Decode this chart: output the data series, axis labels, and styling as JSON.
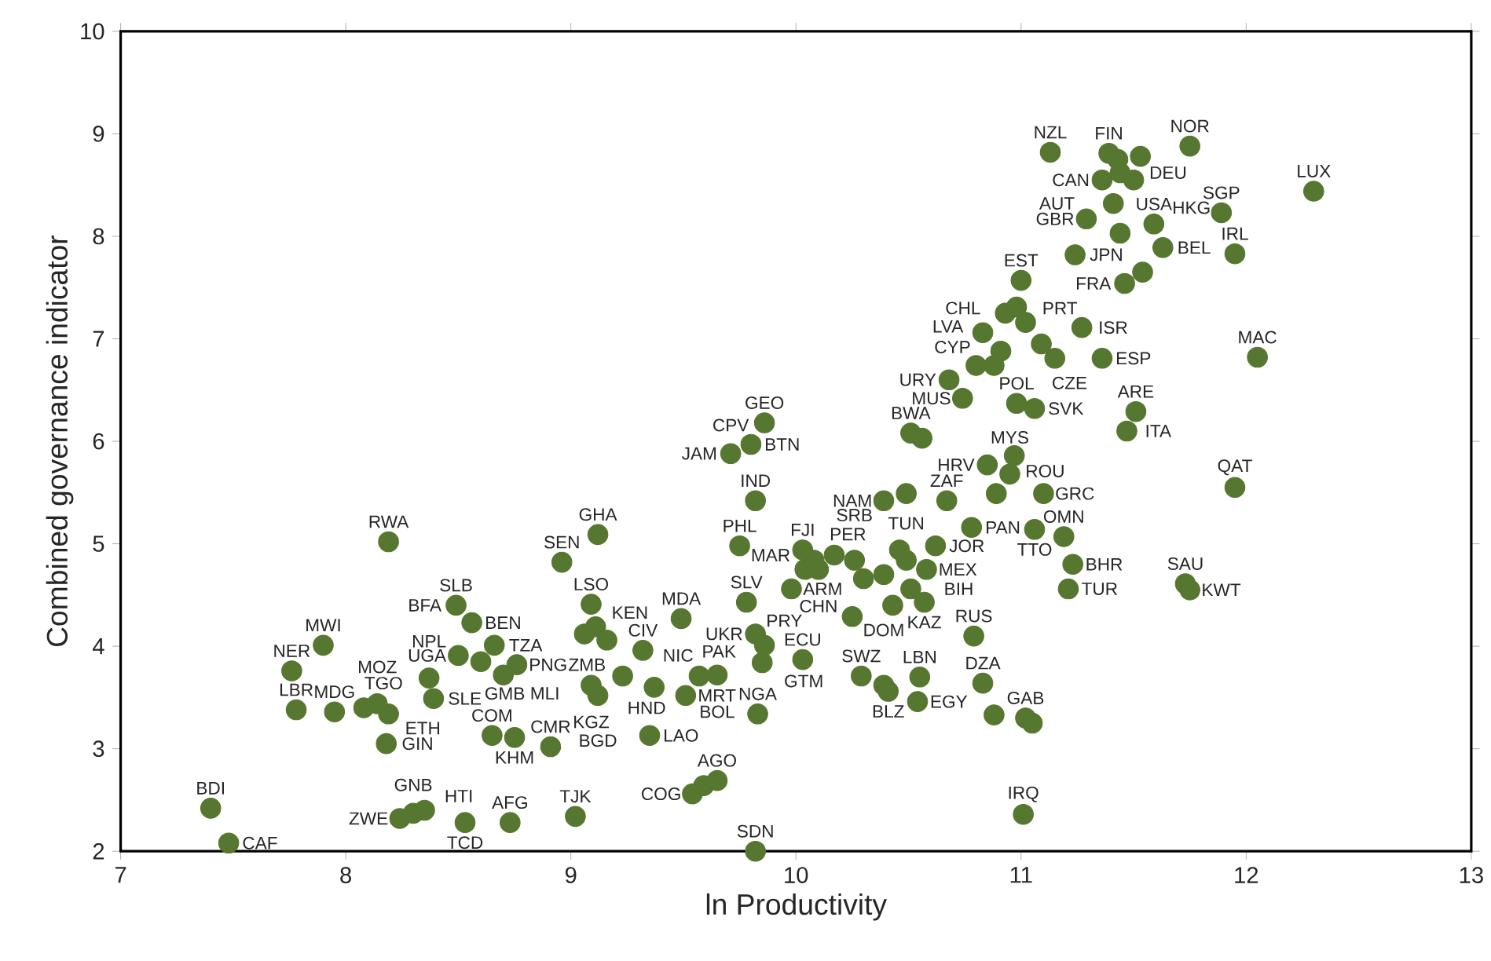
{
  "chart_data": {
    "type": "scatter",
    "xlabel": "ln Productivity",
    "ylabel": "Combined governance indicator",
    "xlim": [
      7,
      13
    ],
    "ylim": [
      2,
      10
    ],
    "xticks": [
      7,
      8,
      9,
      10,
      11,
      12,
      13
    ],
    "yticks": [
      2,
      3,
      4,
      5,
      6,
      7,
      8,
      9,
      10
    ],
    "grid": false,
    "series": [
      {
        "color": "#55772f",
        "x": [
          7.4,
          7.48,
          8.19,
          7.9,
          7.76,
          7.78,
          7.95,
          8.08,
          8.14,
          8.19,
          8.18,
          8.24,
          8.3,
          8.35,
          8.53,
          8.73,
          9.02,
          8.91,
          8.65,
          8.75,
          8.37,
          8.39,
          8.5,
          8.49,
          8.56,
          8.66,
          8.6,
          8.76,
          8.7,
          8.96,
          9.12,
          9.09,
          9.11,
          9.06,
          9.16,
          9.09,
          9.12,
          9.23,
          9.35,
          9.37,
          9.32,
          9.49,
          9.57,
          9.51,
          9.65,
          9.54,
          9.59,
          9.65,
          9.82,
          9.83,
          9.85,
          9.82,
          9.86,
          9.78,
          10.03,
          9.75,
          9.82,
          9.71,
          9.8,
          9.86,
          9.98,
          10.04,
          10.1,
          10.08,
          10.03,
          10.17,
          10.26,
          10.3,
          10.39,
          10.49,
          10.51,
          10.58,
          10.62,
          10.46,
          10.39,
          10.49,
          10.67,
          10.43,
          10.57,
          10.25,
          10.29,
          10.39,
          10.41,
          10.55,
          10.54,
          10.79,
          10.83,
          10.88,
          11.02,
          11.05,
          11.01,
          10.78,
          10.89,
          10.85,
          10.95,
          10.97,
          10.51,
          10.56,
          10.68,
          10.74,
          10.8,
          10.83,
          10.88,
          10.91,
          10.93,
          10.98,
          11.0,
          10.98,
          11.06,
          11.02,
          11.09,
          11.15,
          11.1,
          11.06,
          11.19,
          11.21,
          11.23,
          11.27,
          11.13,
          11.39,
          11.53,
          11.75,
          11.36,
          11.44,
          11.5,
          11.41,
          11.29,
          11.89,
          12.3,
          11.59,
          11.63,
          11.44,
          11.24,
          11.95,
          11.54,
          11.46,
          12.05,
          11.43,
          11.95,
          11.73,
          11.75,
          11.51,
          11.47,
          11.36
        ],
        "values": [
          2.42,
          2.08,
          5.02,
          4.01,
          3.76,
          3.38,
          3.36,
          3.4,
          3.44,
          3.34,
          3.05,
          2.32,
          2.37,
          2.4,
          2.28,
          2.28,
          2.34,
          3.02,
          3.13,
          3.11,
          3.69,
          3.49,
          3.91,
          4.4,
          4.23,
          4.01,
          3.85,
          3.82,
          3.72,
          4.82,
          5.09,
          4.41,
          4.19,
          4.12,
          4.06,
          3.62,
          3.52,
          3.71,
          3.13,
          3.6,
          3.96,
          4.27,
          3.71,
          3.52,
          3.72,
          2.56,
          2.64,
          2.69,
          2.0,
          3.34,
          3.84,
          4.12,
          4.01,
          4.43,
          3.87,
          4.98,
          5.42,
          5.88,
          5.97,
          6.18,
          4.56,
          4.75,
          4.75,
          4.84,
          4.94,
          4.89,
          4.84,
          4.66,
          4.7,
          4.84,
          4.56,
          4.75,
          4.98,
          4.94,
          5.42,
          5.49,
          5.42,
          4.4,
          4.43,
          4.29,
          3.71,
          3.62,
          3.56,
          3.7,
          3.46,
          4.1,
          3.64,
          3.33,
          3.3,
          3.25,
          2.36,
          5.16,
          5.49,
          5.77,
          5.68,
          5.86,
          6.08,
          6.03,
          6.6,
          6.42,
          6.74,
          7.06,
          6.74,
          6.88,
          7.25,
          7.31,
          7.57,
          6.37,
          6.32,
          7.16,
          6.95,
          6.81,
          5.49,
          5.14,
          5.07,
          4.56,
          4.8,
          7.11,
          8.82,
          8.81,
          8.78,
          8.88,
          8.55,
          8.62,
          8.55,
          8.32,
          8.17,
          8.23,
          8.44,
          8.12,
          7.89,
          8.03,
          7.82,
          7.83,
          7.65,
          7.54,
          6.82,
          8.75,
          5.55,
          4.61,
          4.55,
          6.29,
          6.1,
          6.81
        ]
      }
    ],
    "annotations": [
      {
        "text": "BDI",
        "x": 7.4,
        "y": 2.42
      },
      {
        "text": "CAF",
        "x": 7.48,
        "y": 2.08
      },
      {
        "text": "RWA",
        "x": 8.19,
        "y": 5.02
      },
      {
        "text": "MWI",
        "x": 7.9,
        "y": 4.01
      },
      {
        "text": "NER",
        "x": 7.76,
        "y": 3.76
      },
      {
        "text": "LBR",
        "x": 7.78,
        "y": 3.38
      },
      {
        "text": "MDG",
        "x": 7.95,
        "y": 3.36
      },
      {
        "text": "TGO",
        "x": 8.08,
        "y": 3.4
      },
      {
        "text": "MOZ",
        "x": 8.14,
        "y": 3.44
      },
      {
        "text": "ETH",
        "x": 8.19,
        "y": 3.34
      },
      {
        "text": "GIN",
        "x": 8.18,
        "y": 3.05
      },
      {
        "text": "ZWE",
        "x": 8.24,
        "y": 2.32
      },
      {
        "text": "GNB",
        "x": 8.3,
        "y": 2.37
      },
      {
        "text": "HTI",
        "x": 8.35,
        "y": 2.4
      },
      {
        "text": "TCD",
        "x": 8.53,
        "y": 2.28
      },
      {
        "text": "AFG",
        "x": 8.73,
        "y": 2.28
      },
      {
        "text": "TJK",
        "x": 9.02,
        "y": 2.34
      },
      {
        "text": "CMR",
        "x": 8.91,
        "y": 3.02
      },
      {
        "text": "COM",
        "x": 8.65,
        "y": 3.13
      },
      {
        "text": "KHM",
        "x": 8.75,
        "y": 3.11
      },
      {
        "text": "SLE",
        "x": 8.39,
        "y": 3.49
      },
      {
        "text": "NPL",
        "x": 8.37,
        "y": 3.69
      },
      {
        "text": "UGA",
        "x": 8.5,
        "y": 3.91
      },
      {
        "text": "GMB",
        "x": 8.6,
        "y": 3.85
      },
      {
        "text": "TZA",
        "x": 8.66,
        "y": 4.01
      },
      {
        "text": "PNG",
        "x": 8.76,
        "y": 3.82
      },
      {
        "text": "MLI",
        "x": 8.7,
        "y": 3.72
      },
      {
        "text": "BEN",
        "x": 8.56,
        "y": 4.23
      },
      {
        "text": "SLB",
        "x": 8.49,
        "y": 4.4
      },
      {
        "text": "BFA",
        "x": 8.49,
        "y": 4.4
      },
      {
        "text": "SEN",
        "x": 8.96,
        "y": 4.82
      },
      {
        "text": "GHA",
        "x": 9.12,
        "y": 5.09
      },
      {
        "text": "LSO",
        "x": 9.09,
        "y": 4.41
      },
      {
        "text": "KEN",
        "x": 9.11,
        "y": 4.19
      },
      {
        "text": "ZMB",
        "x": 9.16,
        "y": 4.06
      },
      {
        "text": "CIV",
        "x": 9.32,
        "y": 3.96
      },
      {
        "text": "MDA",
        "x": 9.49,
        "y": 4.27
      },
      {
        "text": "KGZ",
        "x": 9.09,
        "y": 3.62
      },
      {
        "text": "HND",
        "x": 9.23,
        "y": 3.71
      },
      {
        "text": "BGD",
        "x": 9.12,
        "y": 3.52
      },
      {
        "text": "NIC",
        "x": 9.37,
        "y": 3.6
      },
      {
        "text": "MRT",
        "x": 9.51,
        "y": 3.52
      },
      {
        "text": "PAK",
        "x": 9.57,
        "y": 3.71
      },
      {
        "text": "BOL",
        "x": 9.65,
        "y": 3.72
      },
      {
        "text": "LAO",
        "x": 9.35,
        "y": 3.13
      },
      {
        "text": "AGO",
        "x": 9.65,
        "y": 2.69
      },
      {
        "text": "COG",
        "x": 9.54,
        "y": 2.56
      },
      {
        "text": "SDN",
        "x": 9.82,
        "y": 2.0
      },
      {
        "text": "NGA",
        "x": 9.83,
        "y": 3.34
      },
      {
        "text": "GTM",
        "x": 9.85,
        "y": 3.84
      },
      {
        "text": "UKR",
        "x": 9.82,
        "y": 4.12
      },
      {
        "text": "PRY",
        "x": 9.86,
        "y": 4.01
      },
      {
        "text": "SLV",
        "x": 9.78,
        "y": 4.43
      },
      {
        "text": "ECU",
        "x": 10.03,
        "y": 3.87
      },
      {
        "text": "PHL",
        "x": 9.75,
        "y": 4.98
      },
      {
        "text": "ARM",
        "x": 9.98,
        "y": 4.56
      },
      {
        "text": "MAR",
        "x": 10.04,
        "y": 4.75
      },
      {
        "text": "CHN",
        "x": 10.1,
        "y": 4.75
      },
      {
        "text": "IND",
        "x": 9.82,
        "y": 5.42
      },
      {
        "text": "JAM",
        "x": 9.71,
        "y": 5.88
      },
      {
        "text": "CPV",
        "x": 9.71,
        "y": 5.88
      },
      {
        "text": "BTN",
        "x": 9.8,
        "y": 5.97
      },
      {
        "text": "GEO",
        "x": 9.86,
        "y": 6.18
      },
      {
        "text": "FJI",
        "x": 10.03,
        "y": 4.94
      },
      {
        "text": "PER",
        "x": 10.08,
        "y": 4.84
      },
      {
        "text": "SRB",
        "x": 10.26,
        "y": 4.84
      },
      {
        "text": "TUN",
        "x": 10.49,
        "y": 4.84
      },
      {
        "text": "JOR",
        "x": 10.62,
        "y": 4.98
      },
      {
        "text": "DOM",
        "x": 10.39,
        "y": 4.7
      },
      {
        "text": "MEX",
        "x": 10.58,
        "y": 4.75
      },
      {
        "text": "BIH",
        "x": 10.51,
        "y": 4.56
      },
      {
        "text": "SWZ",
        "x": 10.29,
        "y": 3.71
      },
      {
        "text": "BLZ",
        "x": 10.41,
        "y": 3.56
      },
      {
        "text": "LBN",
        "x": 10.55,
        "y": 3.7
      },
      {
        "text": "EGY",
        "x": 10.54,
        "y": 3.46
      },
      {
        "text": "KAZ",
        "x": 10.57,
        "y": 4.43
      },
      {
        "text": "RUS",
        "x": 10.79,
        "y": 4.1
      },
      {
        "text": "DZA",
        "x": 10.83,
        "y": 3.64
      },
      {
        "text": "GAB",
        "x": 11.02,
        "y": 3.3
      },
      {
        "text": "IRQ",
        "x": 11.01,
        "y": 2.36
      },
      {
        "text": "NAM",
        "x": 10.39,
        "y": 5.42
      },
      {
        "text": "ZAF",
        "x": 10.67,
        "y": 5.42
      },
      {
        "text": "ROU",
        "x": 10.89,
        "y": 5.49
      },
      {
        "text": "GRC",
        "x": 11.1,
        "y": 5.49
      },
      {
        "text": "PAN",
        "x": 10.78,
        "y": 5.16
      },
      {
        "text": "MYS",
        "x": 10.95,
        "y": 5.68
      },
      {
        "text": "HRV",
        "x": 10.85,
        "y": 5.77
      },
      {
        "text": "TTO",
        "x": 11.06,
        "y": 5.14
      },
      {
        "text": "OMN",
        "x": 11.19,
        "y": 5.07
      },
      {
        "text": "BHR",
        "x": 11.23,
        "y": 4.8
      },
      {
        "text": "TUR",
        "x": 11.21,
        "y": 4.56
      },
      {
        "text": "BWA",
        "x": 10.51,
        "y": 6.08
      },
      {
        "text": "MUS",
        "x": 10.74,
        "y": 6.42
      },
      {
        "text": "URY",
        "x": 10.68,
        "y": 6.6
      },
      {
        "text": "POL",
        "x": 10.98,
        "y": 6.37
      },
      {
        "text": "SVK",
        "x": 11.06,
        "y": 6.32
      },
      {
        "text": "CYP",
        "x": 10.88,
        "y": 6.74
      },
      {
        "text": "LVA",
        "x": 10.8,
        "y": 6.74
      },
      {
        "text": "CHL",
        "x": 10.83,
        "y": 7.06
      },
      {
        "text": "PRT",
        "x": 11.02,
        "y": 7.16
      },
      {
        "text": "CZE",
        "x": 11.09,
        "y": 6.95
      },
      {
        "text": "ISR",
        "x": 11.27,
        "y": 7.11
      },
      {
        "text": "ESP",
        "x": 11.36,
        "y": 6.81
      },
      {
        "text": "EST",
        "x": 11.0,
        "y": 7.57
      },
      {
        "text": "JPN",
        "x": 11.24,
        "y": 7.82
      },
      {
        "text": "USA",
        "x": 11.59,
        "y": 8.12
      },
      {
        "text": "BEL",
        "x": 11.63,
        "y": 7.89
      },
      {
        "text": "FRA",
        "x": 11.46,
        "y": 7.54
      },
      {
        "text": "ARE",
        "x": 11.51,
        "y": 6.29
      },
      {
        "text": "ITA",
        "x": 11.47,
        "y": 6.1
      },
      {
        "text": "MAC",
        "x": 12.05,
        "y": 6.82
      },
      {
        "text": "QAT",
        "x": 11.95,
        "y": 5.55
      },
      {
        "text": "SAU",
        "x": 11.73,
        "y": 4.61
      },
      {
        "text": "KWT",
        "x": 11.75,
        "y": 4.55
      },
      {
        "text": "LUX",
        "x": 12.3,
        "y": 8.44
      },
      {
        "text": "SGP",
        "x": 11.89,
        "y": 8.23
      },
      {
        "text": "IRL",
        "x": 11.95,
        "y": 7.83
      },
      {
        "text": "NOR",
        "x": 11.75,
        "y": 8.88
      },
      {
        "text": "NZL",
        "x": 11.13,
        "y": 8.82
      },
      {
        "text": "FIN",
        "x": 11.39,
        "y": 8.81
      },
      {
        "text": "CAN",
        "x": 11.36,
        "y": 8.55
      },
      {
        "text": "DEU",
        "x": 11.44,
        "y": 8.62
      },
      {
        "text": "GBR",
        "x": 11.29,
        "y": 8.17
      },
      {
        "text": "HKG",
        "x": 11.5,
        "y": 8.55
      },
      {
        "text": "AUT",
        "x": 11.41,
        "y": 8.32
      }
    ]
  }
}
